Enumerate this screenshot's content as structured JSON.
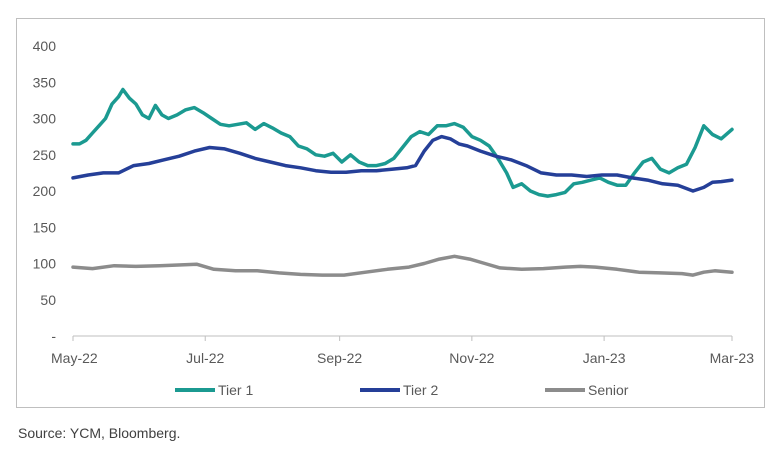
{
  "source_note": "Source: YCM, Bloomberg.",
  "colors": {
    "tier1": "#1b9a91",
    "tier2": "#253f98",
    "senior": "#8c8c8c",
    "axis": "#bfbfbf"
  },
  "chart_data": {
    "type": "line",
    "title": "",
    "xlabel": "",
    "ylabel": "",
    "ylim": [
      0,
      400
    ],
    "y_ticks": [
      {
        "value": 0,
        "label": "-"
      },
      {
        "value": 50,
        "label": "50"
      },
      {
        "value": 100,
        "label": "100"
      },
      {
        "value": 150,
        "label": "150"
      },
      {
        "value": 200,
        "label": "200"
      },
      {
        "value": 250,
        "label": "250"
      },
      {
        "value": 300,
        "label": "300"
      },
      {
        "value": 350,
        "label": "350"
      },
      {
        "value": 400,
        "label": "400"
      }
    ],
    "x_start": "2022-05-01",
    "x_end": "2023-03-01",
    "x_ticks": [
      {
        "date": "2022-05-01",
        "label": "May-22"
      },
      {
        "date": "2022-07-01",
        "label": "Jul-22"
      },
      {
        "date": "2022-09-01",
        "label": "Sep-22"
      },
      {
        "date": "2022-11-01",
        "label": "Nov-22"
      },
      {
        "date": "2023-01-01",
        "label": "Jan-23"
      },
      {
        "date": "2023-03-01",
        "label": "Mar-23"
      }
    ],
    "grid": true,
    "legend_position": "bottom",
    "series": [
      {
        "name": "Tier 1",
        "color": "#1b9a91",
        "points": [
          [
            "2022-05-01",
            265
          ],
          [
            "2022-05-04",
            265
          ],
          [
            "2022-05-07",
            270
          ],
          [
            "2022-05-10",
            280
          ],
          [
            "2022-05-13",
            290
          ],
          [
            "2022-05-16",
            300
          ],
          [
            "2022-05-19",
            320
          ],
          [
            "2022-05-22",
            330
          ],
          [
            "2022-05-24",
            340
          ],
          [
            "2022-05-27",
            328
          ],
          [
            "2022-05-30",
            320
          ],
          [
            "2022-06-02",
            305
          ],
          [
            "2022-06-05",
            300
          ],
          [
            "2022-06-08",
            318
          ],
          [
            "2022-06-11",
            305
          ],
          [
            "2022-06-14",
            300
          ],
          [
            "2022-06-18",
            305
          ],
          [
            "2022-06-22",
            312
          ],
          [
            "2022-06-26",
            315
          ],
          [
            "2022-06-30",
            308
          ],
          [
            "2022-07-04",
            300
          ],
          [
            "2022-07-08",
            292
          ],
          [
            "2022-07-12",
            290
          ],
          [
            "2022-07-16",
            292
          ],
          [
            "2022-07-20",
            294
          ],
          [
            "2022-07-24",
            285
          ],
          [
            "2022-07-28",
            293
          ],
          [
            "2022-08-01",
            287
          ],
          [
            "2022-08-05",
            280
          ],
          [
            "2022-08-09",
            275
          ],
          [
            "2022-08-13",
            262
          ],
          [
            "2022-08-17",
            258
          ],
          [
            "2022-08-21",
            250
          ],
          [
            "2022-08-25",
            248
          ],
          [
            "2022-08-29",
            252
          ],
          [
            "2022-09-02",
            240
          ],
          [
            "2022-09-06",
            250
          ],
          [
            "2022-09-10",
            240
          ],
          [
            "2022-09-14",
            235
          ],
          [
            "2022-09-18",
            235
          ],
          [
            "2022-09-22",
            238
          ],
          [
            "2022-09-26",
            245
          ],
          [
            "2022-09-30",
            260
          ],
          [
            "2022-10-04",
            275
          ],
          [
            "2022-10-08",
            282
          ],
          [
            "2022-10-12",
            278
          ],
          [
            "2022-10-16",
            290
          ],
          [
            "2022-10-20",
            290
          ],
          [
            "2022-10-24",
            293
          ],
          [
            "2022-10-28",
            288
          ],
          [
            "2022-11-01",
            275
          ],
          [
            "2022-11-05",
            270
          ],
          [
            "2022-11-09",
            262
          ],
          [
            "2022-11-13",
            245
          ],
          [
            "2022-11-17",
            225
          ],
          [
            "2022-11-20",
            205
          ],
          [
            "2022-11-24",
            210
          ],
          [
            "2022-11-28",
            200
          ],
          [
            "2022-12-02",
            195
          ],
          [
            "2022-12-06",
            193
          ],
          [
            "2022-12-10",
            195
          ],
          [
            "2022-12-14",
            198
          ],
          [
            "2022-12-18",
            210
          ],
          [
            "2022-12-22",
            212
          ],
          [
            "2022-12-26",
            215
          ],
          [
            "2022-12-30",
            218
          ],
          [
            "2023-01-03",
            212
          ],
          [
            "2023-01-07",
            208
          ],
          [
            "2023-01-11",
            208
          ],
          [
            "2023-01-15",
            225
          ],
          [
            "2023-01-19",
            240
          ],
          [
            "2023-01-23",
            245
          ],
          [
            "2023-01-27",
            230
          ],
          [
            "2023-01-31",
            225
          ],
          [
            "2023-02-04",
            232
          ],
          [
            "2023-02-08",
            237
          ],
          [
            "2023-02-12",
            260
          ],
          [
            "2023-02-16",
            290
          ],
          [
            "2023-02-20",
            278
          ],
          [
            "2023-02-24",
            272
          ],
          [
            "2023-03-01",
            285
          ]
        ]
      },
      {
        "name": "Tier 2",
        "color": "#253f98",
        "points": [
          [
            "2022-05-01",
            218
          ],
          [
            "2022-05-08",
            222
          ],
          [
            "2022-05-15",
            225
          ],
          [
            "2022-05-22",
            225
          ],
          [
            "2022-05-29",
            235
          ],
          [
            "2022-06-05",
            238
          ],
          [
            "2022-06-12",
            243
          ],
          [
            "2022-06-19",
            248
          ],
          [
            "2022-06-26",
            255
          ],
          [
            "2022-07-03",
            260
          ],
          [
            "2022-07-10",
            258
          ],
          [
            "2022-07-17",
            252
          ],
          [
            "2022-07-24",
            245
          ],
          [
            "2022-07-31",
            240
          ],
          [
            "2022-08-07",
            235
          ],
          [
            "2022-08-14",
            232
          ],
          [
            "2022-08-21",
            228
          ],
          [
            "2022-08-28",
            226
          ],
          [
            "2022-09-04",
            226
          ],
          [
            "2022-09-11",
            228
          ],
          [
            "2022-09-18",
            228
          ],
          [
            "2022-09-25",
            230
          ],
          [
            "2022-10-02",
            232
          ],
          [
            "2022-10-06",
            235
          ],
          [
            "2022-10-10",
            255
          ],
          [
            "2022-10-14",
            270
          ],
          [
            "2022-10-18",
            275
          ],
          [
            "2022-10-22",
            272
          ],
          [
            "2022-10-26",
            265
          ],
          [
            "2022-10-30",
            262
          ],
          [
            "2022-11-05",
            255
          ],
          [
            "2022-11-12",
            248
          ],
          [
            "2022-11-19",
            243
          ],
          [
            "2022-11-26",
            235
          ],
          [
            "2022-12-03",
            225
          ],
          [
            "2022-12-10",
            222
          ],
          [
            "2022-12-17",
            222
          ],
          [
            "2022-12-24",
            220
          ],
          [
            "2022-12-31",
            222
          ],
          [
            "2023-01-07",
            222
          ],
          [
            "2023-01-14",
            218
          ],
          [
            "2023-01-21",
            215
          ],
          [
            "2023-01-28",
            210
          ],
          [
            "2023-02-04",
            208
          ],
          [
            "2023-02-11",
            200
          ],
          [
            "2023-02-16",
            205
          ],
          [
            "2023-02-20",
            212
          ],
          [
            "2023-02-24",
            213
          ],
          [
            "2023-03-01",
            215
          ]
        ]
      },
      {
        "name": "Senior",
        "color": "#8c8c8c",
        "points": [
          [
            "2022-05-01",
            95
          ],
          [
            "2022-05-10",
            93
          ],
          [
            "2022-05-20",
            97
          ],
          [
            "2022-05-30",
            96
          ],
          [
            "2022-06-10",
            97
          ],
          [
            "2022-06-20",
            98
          ],
          [
            "2022-06-27",
            99
          ],
          [
            "2022-07-05",
            92
          ],
          [
            "2022-07-15",
            90
          ],
          [
            "2022-07-25",
            90
          ],
          [
            "2022-08-04",
            87
          ],
          [
            "2022-08-14",
            85
          ],
          [
            "2022-08-24",
            84
          ],
          [
            "2022-09-03",
            84
          ],
          [
            "2022-09-13",
            88
          ],
          [
            "2022-09-23",
            92
          ],
          [
            "2022-10-03",
            95
          ],
          [
            "2022-10-10",
            100
          ],
          [
            "2022-10-17",
            106
          ],
          [
            "2022-10-24",
            110
          ],
          [
            "2022-10-31",
            106
          ],
          [
            "2022-11-07",
            100
          ],
          [
            "2022-11-14",
            94
          ],
          [
            "2022-11-24",
            92
          ],
          [
            "2022-12-04",
            93
          ],
          [
            "2022-12-14",
            95
          ],
          [
            "2022-12-21",
            96
          ],
          [
            "2022-12-28",
            95
          ],
          [
            "2023-01-07",
            92
          ],
          [
            "2023-01-17",
            88
          ],
          [
            "2023-01-27",
            87
          ],
          [
            "2023-02-06",
            86
          ],
          [
            "2023-02-11",
            84
          ],
          [
            "2023-02-16",
            88
          ],
          [
            "2023-02-21",
            90
          ],
          [
            "2023-03-01",
            88
          ]
        ]
      }
    ]
  }
}
